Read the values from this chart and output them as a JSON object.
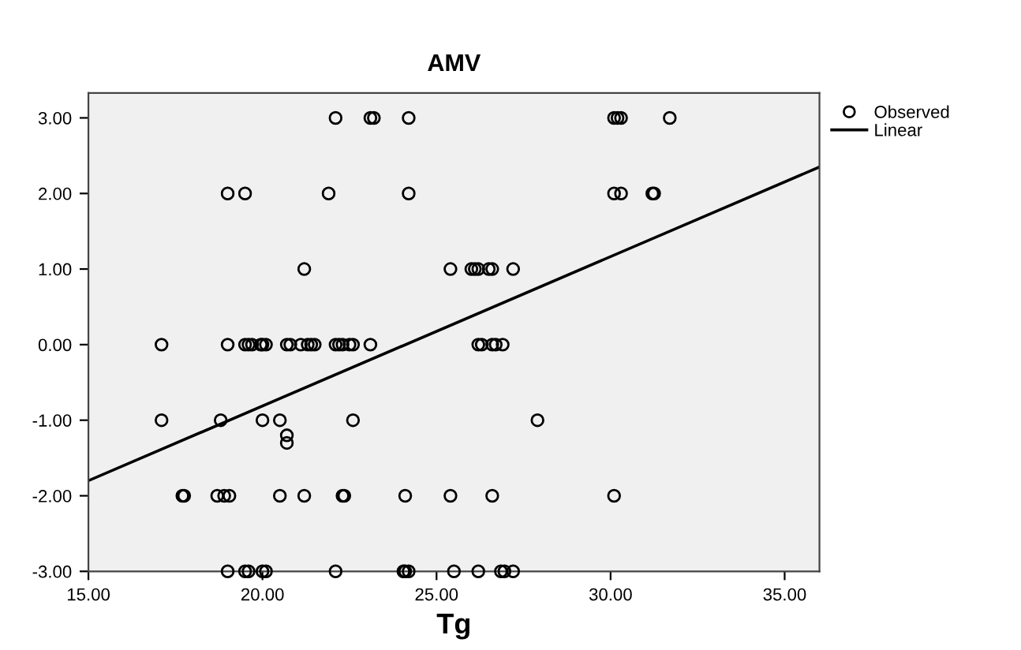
{
  "chart_data": {
    "type": "scatter",
    "title": "AMV",
    "xlabel": "Tg",
    "xlim": [
      15,
      36
    ],
    "ylim": [
      -3,
      3.33
    ],
    "xticks": [
      {
        "value": 15,
        "label": "15.00"
      },
      {
        "value": 20,
        "label": "20.00"
      },
      {
        "value": 25,
        "label": "25.00"
      },
      {
        "value": 30,
        "label": "30.00"
      },
      {
        "value": 35,
        "label": "35.00"
      }
    ],
    "yticks": [
      {
        "value": -3,
        "label": "-3.00"
      },
      {
        "value": -2,
        "label": "-2.00"
      },
      {
        "value": -1,
        "label": "-1.00"
      },
      {
        "value": 0,
        "label": "0.00"
      },
      {
        "value": 1,
        "label": "1.00"
      },
      {
        "value": 2,
        "label": "2.00"
      },
      {
        "value": 3,
        "label": "3.00"
      }
    ],
    "grid": false,
    "legend": "top right",
    "series": [
      {
        "name": "Observed",
        "marker": "circle",
        "color": "#000000",
        "x": [
          22.1,
          23.1,
          23.2,
          24.2,
          30.1,
          30.2,
          30.3,
          31.7,
          19.0,
          19.5,
          21.9,
          24.2,
          30.1,
          30.3,
          31.2,
          31.25,
          21.2,
          25.4,
          26.0,
          26.1,
          26.2,
          26.5,
          26.6,
          27.2,
          17.1,
          19.0,
          19.5,
          19.6,
          19.7,
          19.95,
          20.0,
          20.1,
          20.7,
          20.8,
          21.1,
          21.3,
          21.4,
          21.5,
          22.1,
          22.2,
          22.3,
          22.5,
          22.6,
          23.1,
          26.2,
          26.3,
          26.6,
          26.7,
          26.9,
          17.1,
          18.8,
          20.0,
          20.5,
          22.6,
          27.9,
          20.7,
          20.7,
          17.7,
          17.75,
          18.7,
          18.9,
          19.05,
          20.5,
          21.2,
          22.3,
          22.35,
          24.1,
          25.4,
          26.6,
          30.1,
          19.0,
          19.5,
          19.6,
          20.0,
          20.1,
          22.1,
          24.05,
          24.1,
          24.2,
          25.5,
          26.2,
          26.85,
          26.95,
          27.2
        ],
        "values": [
          3,
          3,
          3,
          3,
          3,
          3,
          3,
          3,
          2,
          2,
          2,
          2,
          2,
          2,
          2,
          2,
          1,
          1,
          1,
          1,
          1,
          1,
          1,
          1,
          0,
          0,
          0,
          0,
          0,
          0,
          0,
          0,
          0,
          0,
          0,
          0,
          0,
          0,
          0,
          0,
          0,
          0,
          0,
          0,
          0,
          0,
          0,
          0,
          0,
          -1,
          -1,
          -1,
          -1,
          -1,
          -1,
          -1.2,
          -1.3,
          -2,
          -2,
          -2,
          -2,
          -2,
          -2,
          -2,
          -2,
          -2,
          -2,
          -2,
          -2,
          -2,
          -3,
          -3,
          -3,
          -3,
          -3,
          -3,
          -3,
          -3,
          -3,
          -3,
          -3,
          -3,
          -3,
          -3
        ]
      },
      {
        "name": "Linear",
        "type": "line",
        "color": "#000000",
        "line_style": "solid",
        "x": [
          15,
          36
        ],
        "values": [
          -1.8,
          2.35
        ]
      }
    ]
  }
}
